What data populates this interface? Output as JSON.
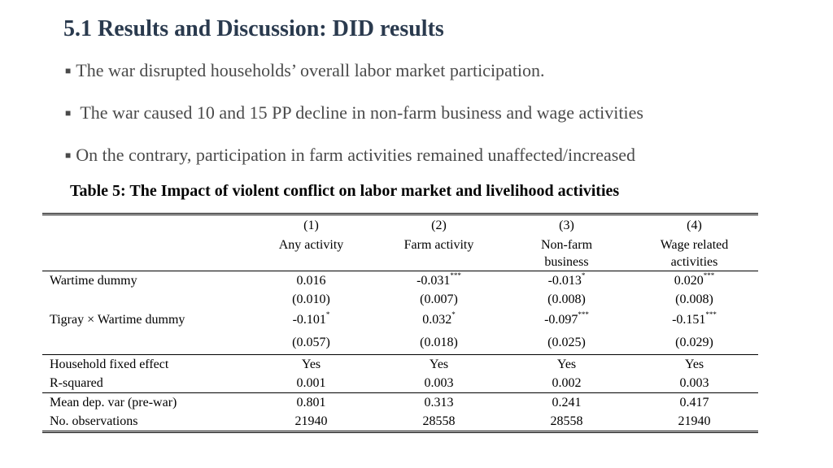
{
  "title": "5.1 Results and Discussion: DID results",
  "bullets": [
    "The war disrupted households’ overall labor market participation.",
    " The war caused 10 and 15 PP decline in non-farm business and wage activities",
    "On the contrary, participation in farm activities remained unaffected/increased"
  ],
  "bullet_marker": "■",
  "table": {
    "caption": "Table 5: The Impact of violent conflict on labor market and livelihood activities",
    "col_numbers": [
      "(1)",
      "(2)",
      "(3)",
      "(4)"
    ],
    "col_labels_line1": [
      "Any activity",
      "Farm activity",
      "Non-farm",
      "Wage related"
    ],
    "col_labels_line2": [
      "",
      "",
      "business",
      "activities"
    ],
    "rows": {
      "wartime": {
        "label": "Wartime dummy",
        "coef": [
          "0.016",
          "-0.031",
          "-0.013",
          "0.020"
        ],
        "stars": [
          "",
          "***",
          "*",
          "***"
        ],
        "se": [
          "(0.010)",
          "(0.007)",
          "(0.008)",
          "(0.008)"
        ]
      },
      "interaction": {
        "label": "Tigray × Wartime dummy",
        "coef": [
          "-0.101",
          "0.032",
          "-0.097",
          "-0.151"
        ],
        "stars": [
          "*",
          "*",
          "***",
          "***"
        ],
        "se": [
          "(0.057)",
          "(0.018)",
          "(0.025)",
          "(0.029)"
        ]
      },
      "fixed_effect": {
        "label": "Household fixed effect",
        "values": [
          "Yes",
          "Yes",
          "Yes",
          "Yes"
        ]
      },
      "r_squared": {
        "label": "R-squared",
        "values": [
          "0.001",
          "0.003",
          "0.002",
          "0.003"
        ]
      },
      "mean_dep": {
        "label": "Mean dep. var (pre-war)",
        "values": [
          "0.801",
          "0.313",
          "0.241",
          "0.417"
        ]
      },
      "observations": {
        "label": "No. observations",
        "values": [
          "21940",
          "28558",
          "28558",
          "21940"
        ]
      }
    }
  }
}
